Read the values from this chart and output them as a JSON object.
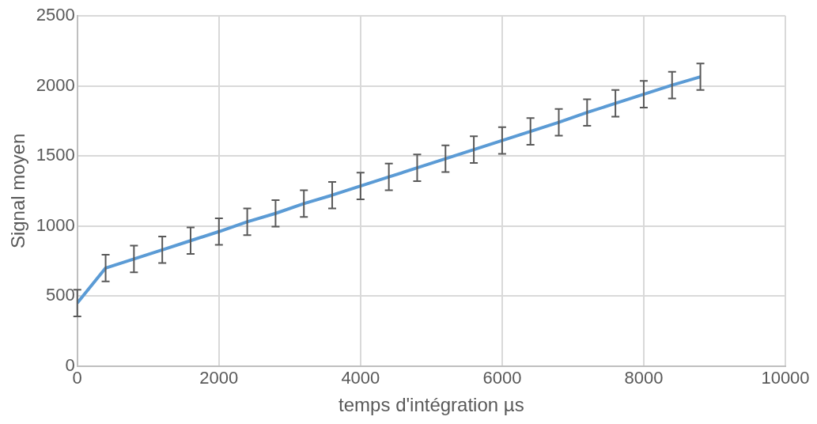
{
  "chart_data": {
    "type": "line",
    "xlabel": "temps d'intégration µs",
    "ylabel": "Signal moyen",
    "x": [
      0,
      400,
      800,
      1200,
      1600,
      2000,
      2400,
      2800,
      3200,
      3600,
      4000,
      4400,
      4800,
      5200,
      5600,
      6000,
      6400,
      6800,
      7200,
      7600,
      8000,
      8400,
      8800
    ],
    "series": [
      {
        "color": "#5b9bd5",
        "values": [
          450,
          700,
          765,
          830,
          895,
          960,
          1030,
          1090,
          1160,
          1220,
          1285,
          1350,
          1415,
          1480,
          1545,
          1610,
          1675,
          1740,
          1810,
          1875,
          1940,
          2005,
          2065
        ],
        "errors": [
          95,
          95,
          95,
          95,
          95,
          95,
          95,
          95,
          95,
          95,
          95,
          95,
          95,
          95,
          95,
          95,
          95,
          95,
          95,
          95,
          95,
          95,
          95
        ]
      }
    ],
    "xlim": [
      0,
      10000
    ],
    "xticks": [
      0,
      2000,
      4000,
      6000,
      8000,
      10000
    ],
    "ylim": [
      0,
      2500
    ],
    "yticks": [
      0,
      500,
      1000,
      1500,
      2000,
      2500
    ],
    "grid": true,
    "legend": false,
    "marker": "none",
    "line_style": "solid"
  }
}
